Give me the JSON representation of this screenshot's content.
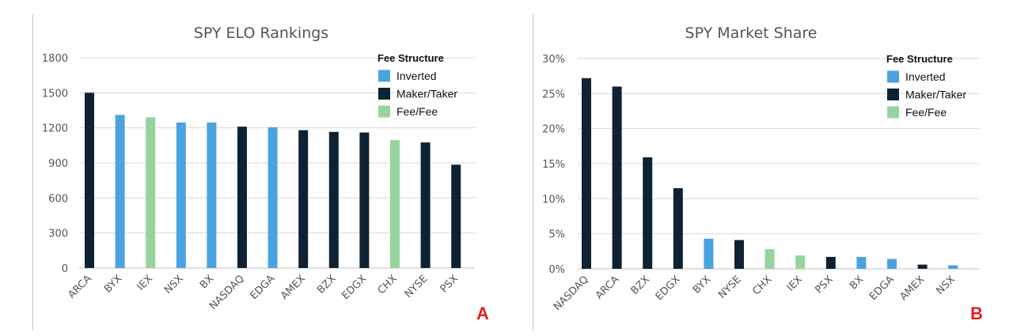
{
  "colors": {
    "inverted": "#4aa3df",
    "maker_taker": "#0f2233",
    "fee_fee": "#96d39f",
    "grid": "#d9d9d9",
    "panel_letter": "#e02020"
  },
  "chart_data": [
    {
      "type": "bar",
      "panel_letter": "A",
      "title": "SPY ELO Rankings",
      "xlabel": "",
      "ylabel": "",
      "ylim": [
        0,
        1800
      ],
      "yticks": [
        0,
        300,
        600,
        900,
        1200,
        1500,
        1800
      ],
      "ytick_labels": [
        "0",
        "300",
        "600",
        "900",
        "1200",
        "1500",
        "1800"
      ],
      "grid": true,
      "legend": {
        "title": "Fee Structure",
        "placement": "top-right",
        "entries": [
          {
            "label": "Inverted",
            "key": "inverted"
          },
          {
            "label": "Maker/Taker",
            "key": "maker_taker"
          },
          {
            "label": "Fee/Fee",
            "key": "fee_fee"
          }
        ]
      },
      "categories": [
        "ARCA",
        "BYX",
        "IEX",
        "NSX",
        "BX",
        "NASDAQ",
        "EDGA",
        "AMEX",
        "BZX",
        "EDGX",
        "CHX",
        "NYSE",
        "PSX"
      ],
      "values": [
        1500,
        1310,
        1290,
        1245,
        1245,
        1210,
        1205,
        1180,
        1165,
        1160,
        1095,
        1075,
        885
      ],
      "fee_structure": [
        "maker_taker",
        "inverted",
        "fee_fee",
        "inverted",
        "inverted",
        "maker_taker",
        "inverted",
        "maker_taker",
        "maker_taker",
        "maker_taker",
        "fee_fee",
        "maker_taker",
        "maker_taker"
      ]
    },
    {
      "type": "bar",
      "panel_letter": "B",
      "title": "SPY Market Share",
      "xlabel": "",
      "ylabel": "",
      "ylim": [
        0,
        30
      ],
      "yticks": [
        0,
        5,
        10,
        15,
        20,
        25,
        30
      ],
      "ytick_labels": [
        "0%",
        "5%",
        "10%",
        "15%",
        "20%",
        "25%",
        "30%"
      ],
      "grid": true,
      "legend": {
        "title": "Fee Structure",
        "placement": "top-right",
        "entries": [
          {
            "label": "Inverted",
            "key": "inverted"
          },
          {
            "label": "Maker/Taker",
            "key": "maker_taker"
          },
          {
            "label": "Fee/Fee",
            "key": "fee_fee"
          }
        ]
      },
      "categories": [
        "NASDAQ",
        "ARCA",
        "BZX",
        "EDGX",
        "BYX",
        "NYSE",
        "CHX",
        "IEX",
        "PSX",
        "BX",
        "EDGA",
        "AMEX",
        "NSX"
      ],
      "values": [
        27.2,
        26.0,
        15.9,
        11.5,
        4.3,
        4.1,
        2.8,
        1.9,
        1.7,
        1.7,
        1.4,
        0.6,
        0.5
      ],
      "fee_structure": [
        "maker_taker",
        "maker_taker",
        "maker_taker",
        "maker_taker",
        "inverted",
        "maker_taker",
        "fee_fee",
        "fee_fee",
        "maker_taker",
        "inverted",
        "inverted",
        "maker_taker",
        "inverted"
      ]
    }
  ]
}
